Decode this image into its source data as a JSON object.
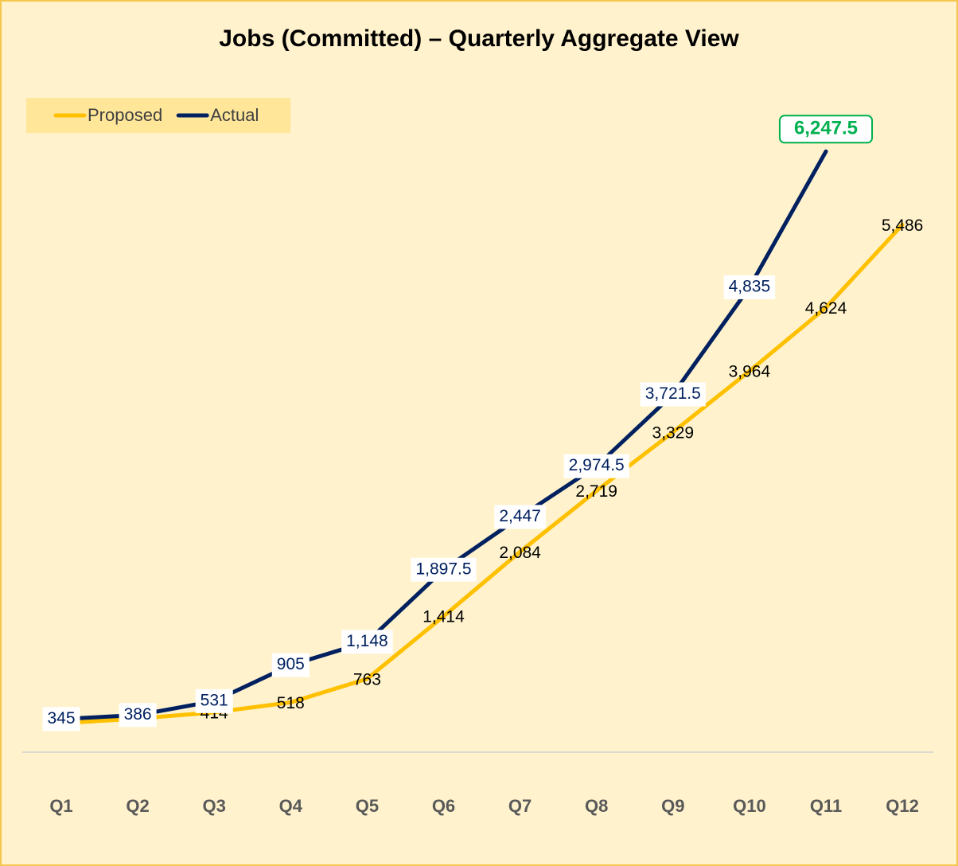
{
  "chart_data": {
    "type": "line",
    "title": "Jobs (Committed) – Quarterly Aggregate View",
    "categories": [
      "Q1",
      "Q2",
      "Q3",
      "Q4",
      "Q5",
      "Q6",
      "Q7",
      "Q8",
      "Q9",
      "Q10",
      "Q11",
      "Q12"
    ],
    "series": [
      {
        "name": "Proposed",
        "color": "#ffc000",
        "values": [
          300,
          350,
          414,
          518,
          763,
          1414,
          2084,
          2719,
          3329,
          3964,
          4624,
          5486
        ],
        "value_labels": [
          null,
          null,
          "414",
          "518",
          "763",
          "1,414",
          "2,084",
          "2,719",
          "3,329",
          "3,964",
          "4,624",
          "5,486"
        ]
      },
      {
        "name": "Actual",
        "color": "#002060",
        "values": [
          345,
          386,
          531,
          905,
          1148,
          1897.5,
          2447,
          2974.5,
          3721.5,
          4835,
          6247.5,
          null
        ],
        "value_labels": [
          "345",
          "386",
          "531",
          "905",
          "1,148",
          "1,897.5",
          "2,447",
          "2,974.5",
          "3,721.5",
          "4,835",
          "6,247.5",
          null
        ]
      }
    ],
    "ylim": [
      0,
      6250
    ],
    "legend": "top-left"
  }
}
